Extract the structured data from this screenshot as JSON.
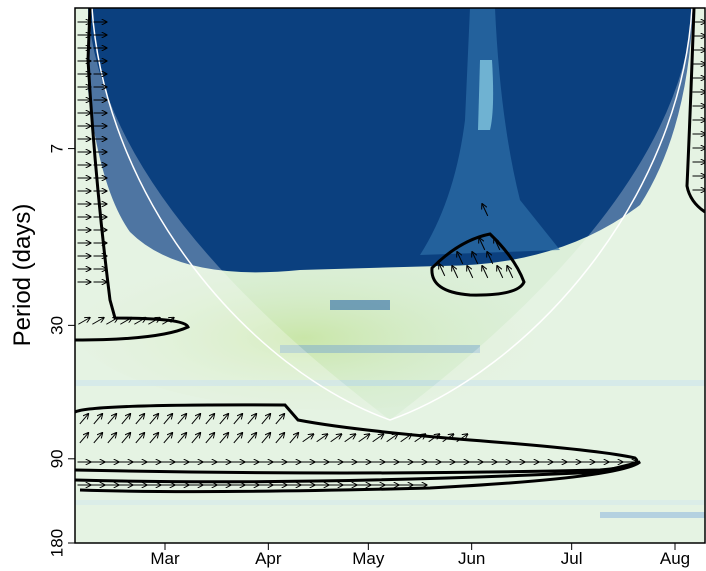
{
  "chart_data": {
    "type": "heatmap",
    "y_label": "Period (days)",
    "ylim": [
      2.2,
      180
    ],
    "yticks": [
      7,
      30,
      90,
      180
    ],
    "y_log": true,
    "y_inverted": true,
    "xlim": [
      33,
      222
    ],
    "xticks": [
      {
        "value": 60,
        "label": "Mar"
      },
      {
        "value": 91,
        "label": "Apr"
      },
      {
        "value": 121,
        "label": "May"
      },
      {
        "value": 152,
        "label": "Jun"
      },
      {
        "value": 182,
        "label": "Jul"
      },
      {
        "value": 213,
        "label": "Aug"
      }
    ]
  }
}
